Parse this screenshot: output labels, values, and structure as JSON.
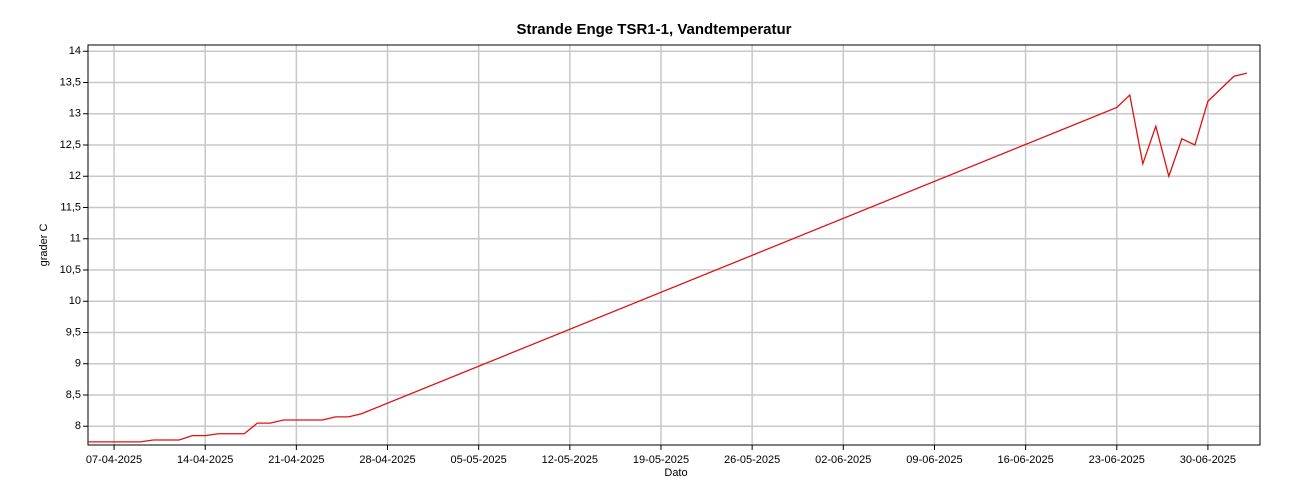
{
  "chart_data": {
    "type": "line",
    "title": "Strande Enge TSR1-1, Vandtemperatur",
    "x_label": "Dato",
    "y_label": "grader C",
    "x": [
      "05-04-2025",
      "06-04-2025",
      "07-04-2025",
      "08-04-2025",
      "09-04-2025",
      "10-04-2025",
      "11-04-2025",
      "12-04-2025",
      "13-04-2025",
      "14-04-2025",
      "15-04-2025",
      "16-04-2025",
      "17-04-2025",
      "18-04-2025",
      "19-04-2025",
      "20-04-2025",
      "21-04-2025",
      "22-04-2025",
      "23-04-2025",
      "24-04-2025",
      "25-04-2025",
      "26-04-2025",
      "23-06-2025",
      "24-06-2025",
      "25-06-2025",
      "26-06-2025",
      "27-06-2025",
      "28-06-2025",
      "29-06-2025",
      "30-06-2025",
      "01-07-2025",
      "02-07-2025",
      "03-07-2025"
    ],
    "series": [
      {
        "name": "Vandtemperatur",
        "color": "#e01010",
        "values": [
          7.75,
          7.75,
          7.75,
          7.75,
          7.75,
          7.78,
          7.78,
          7.78,
          7.85,
          7.85,
          7.88,
          7.88,
          7.88,
          8.05,
          8.05,
          8.1,
          8.1,
          8.1,
          8.1,
          8.15,
          8.15,
          8.2,
          13.1,
          13.3,
          12.2,
          12.8,
          12.0,
          12.6,
          12.5,
          13.2,
          13.4,
          13.6,
          13.65
        ]
      }
    ],
    "xlim": [
      "05-04-2025",
      "04-07-2025"
    ],
    "xticks": [
      "07-04-2025",
      "14-04-2025",
      "21-04-2025",
      "28-04-2025",
      "05-05-2025",
      "12-05-2025",
      "19-05-2025",
      "26-05-2025",
      "02-06-2025",
      "09-06-2025",
      "16-06-2025",
      "23-06-2025",
      "30-06-2025"
    ],
    "ylim": [
      7.7,
      14.1
    ],
    "yticks": [
      8,
      {
        "value": 8.5,
        "label": "8,5"
      },
      9,
      {
        "value": 9.5,
        "label": "9,5"
      },
      10,
      {
        "value": 10.5,
        "label": "10,5"
      },
      11,
      {
        "value": 11.5,
        "label": "11,5"
      },
      12,
      {
        "value": 12.5,
        "label": "12,5"
      },
      13,
      {
        "value": 13.5,
        "label": "13,5"
      },
      14
    ],
    "grid": true
  }
}
